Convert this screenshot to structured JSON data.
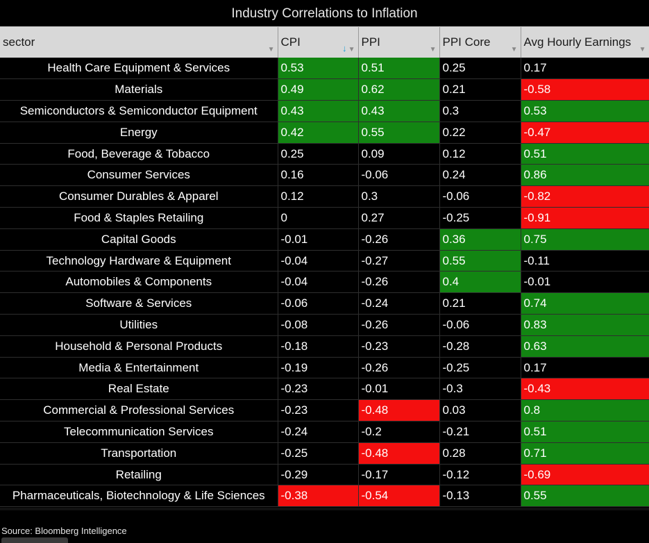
{
  "chart_data": {
    "type": "table",
    "title": "Industry Correlations to Inflation",
    "columns": [
      "sector",
      "CPI",
      "PPI",
      "PPI Core",
      "Avg Hourly Earnings"
    ],
    "sorted_column": "CPI",
    "sort_direction": "descending",
    "colors": {
      "positive": "#128512",
      "negative": "#f40f0f",
      "neutral": "#000000"
    },
    "rows": [
      {
        "sector": "Health Care Equipment & Services",
        "values": [
          "0.53",
          "0.51",
          "0.25",
          "0.17"
        ]
      },
      {
        "sector": "Materials",
        "values": [
          "0.49",
          "0.62",
          "0.21",
          "-0.58"
        ]
      },
      {
        "sector": "Semiconductors & Semiconductor Equipment",
        "values": [
          "0.43",
          "0.43",
          "0.3",
          "0.53"
        ]
      },
      {
        "sector": "Energy",
        "values": [
          "0.42",
          "0.55",
          "0.22",
          "-0.47"
        ]
      },
      {
        "sector": "Food, Beverage & Tobacco",
        "values": [
          "0.25",
          "0.09",
          "0.12",
          "0.51"
        ]
      },
      {
        "sector": "Consumer Services",
        "values": [
          "0.16",
          "-0.06",
          "0.24",
          "0.86"
        ]
      },
      {
        "sector": "Consumer Durables & Apparel",
        "values": [
          "0.12",
          "0.3",
          "-0.06",
          "-0.82"
        ]
      },
      {
        "sector": "Food & Staples Retailing",
        "values": [
          "0",
          "0.27",
          "-0.25",
          "-0.91"
        ]
      },
      {
        "sector": "Capital Goods",
        "values": [
          "-0.01",
          "-0.26",
          "0.36",
          "0.75"
        ]
      },
      {
        "sector": "Technology Hardware & Equipment",
        "values": [
          "-0.04",
          "-0.27",
          "0.55",
          "-0.11"
        ]
      },
      {
        "sector": "Automobiles & Components",
        "values": [
          "-0.04",
          "-0.26",
          "0.4",
          "-0.01"
        ]
      },
      {
        "sector": "Software & Services",
        "values": [
          "-0.06",
          "-0.24",
          "0.21",
          "0.74"
        ]
      },
      {
        "sector": "Utilities",
        "values": [
          "-0.08",
          "-0.26",
          "-0.06",
          "0.83"
        ]
      },
      {
        "sector": "Household & Personal Products",
        "values": [
          "-0.18",
          "-0.23",
          "-0.28",
          "0.63"
        ]
      },
      {
        "sector": "Media & Entertainment",
        "values": [
          "-0.19",
          "-0.26",
          "-0.25",
          "0.17"
        ]
      },
      {
        "sector": "Real Estate",
        "values": [
          "-0.23",
          "-0.01",
          "-0.3",
          "-0.43"
        ]
      },
      {
        "sector": "Commercial & Professional Services",
        "values": [
          "-0.23",
          "-0.48",
          "0.03",
          "0.8"
        ]
      },
      {
        "sector": "Telecommunication Services",
        "values": [
          "-0.24",
          "-0.2",
          "-0.21",
          "0.51"
        ]
      },
      {
        "sector": "Transportation",
        "values": [
          "-0.25",
          "-0.48",
          "0.28",
          "0.71"
        ]
      },
      {
        "sector": "Retailing",
        "values": [
          "-0.29",
          "-0.17",
          "-0.12",
          "-0.69"
        ]
      },
      {
        "sector": "Pharmaceuticals, Biotechnology & Life Sciences",
        "values": [
          "-0.38",
          "-0.54",
          "-0.13",
          "0.55"
        ]
      }
    ]
  },
  "source": "Source: Bloomberg Intelligence",
  "icons": {
    "filter": "filter-icon",
    "sort": "sort-desc-icon"
  }
}
